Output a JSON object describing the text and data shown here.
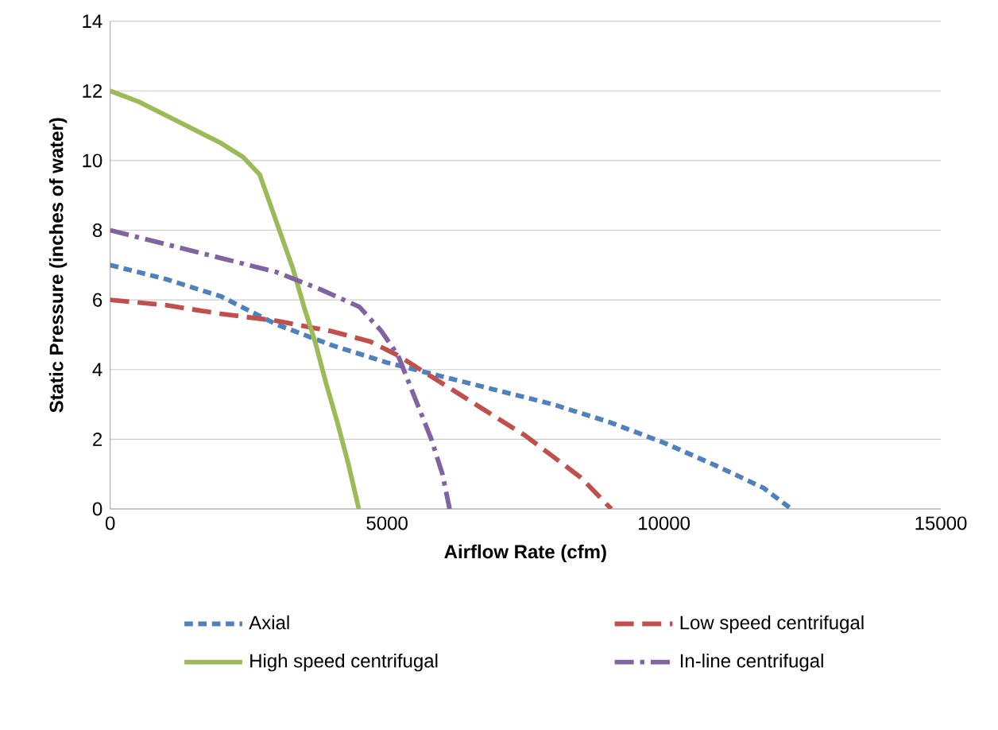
{
  "chart_data": {
    "type": "line",
    "xlabel": "Airflow Rate (cfm)",
    "ylabel": "Static Pressure (inches of water)",
    "xlim": [
      0,
      15000
    ],
    "xticks": [
      0,
      5000,
      10000,
      15000
    ],
    "ylim": [
      0,
      14
    ],
    "yticks": [
      0,
      2,
      4,
      6,
      8,
      10,
      12,
      14
    ],
    "grid": "y",
    "legend": "bottom",
    "marker": "none",
    "series": [
      {
        "name": "Axial",
        "color": "#4f81bd",
        "line_style": "dashed",
        "x": [
          0,
          1000,
          2000,
          3000,
          4000,
          5000,
          6000,
          7000,
          8000,
          9000,
          10000,
          11000,
          11800,
          12300
        ],
        "values": [
          7,
          6.6,
          6.1,
          5.3,
          4.7,
          4.2,
          3.8,
          3.4,
          3,
          2.5,
          1.9,
          1.2,
          0.6,
          0
        ]
      },
      {
        "name": "Low speed centrifugal",
        "color": "#c0504d",
        "line_style": "long dashed",
        "x": [
          0,
          1000,
          2000,
          3000,
          4000,
          4700,
          5200,
          5600,
          6000,
          6500,
          7000,
          7500,
          8000,
          8500,
          9050
        ],
        "values": [
          6,
          5.85,
          5.6,
          5.4,
          5.1,
          4.8,
          4.4,
          4,
          3.6,
          3.1,
          2.6,
          2.1,
          1.5,
          0.9,
          0
        ]
      },
      {
        "name": "High speed centrifugal",
        "color": "#9bbb59",
        "line_style": "solid",
        "x": [
          0,
          500,
          1000,
          1500,
          2000,
          2400,
          2700,
          2900,
          3100,
          3300,
          3500,
          3700,
          3900,
          4100,
          4300,
          4490
        ],
        "values": [
          12,
          11.7,
          11.3,
          10.9,
          10.5,
          10.1,
          9.6,
          8.7,
          7.8,
          6.9,
          5.8,
          4.8,
          3.6,
          2.5,
          1.3,
          0
        ]
      },
      {
        "name": "In-line centrifugal",
        "color": "#8064a2",
        "line_style": "dash dot",
        "x": [
          0,
          1000,
          2000,
          3000,
          3800,
          4500,
          4900,
          5200,
          5400,
          5600,
          5800,
          6000,
          6130
        ],
        "values": [
          8,
          7.6,
          7.2,
          6.8,
          6.3,
          5.8,
          5.1,
          4.4,
          3.6,
          2.8,
          2,
          1,
          0
        ]
      }
    ]
  }
}
